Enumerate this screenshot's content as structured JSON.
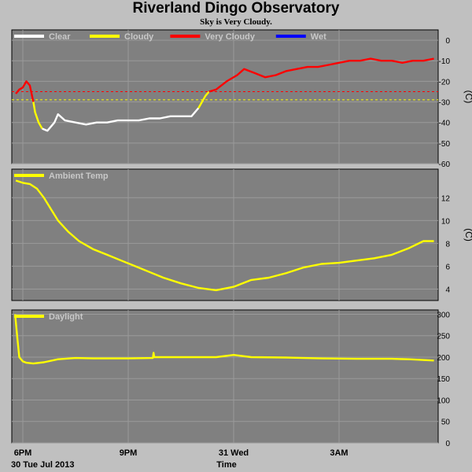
{
  "title": "Riverland Dingo Observatory",
  "subtitle": "Sky is Very Cloudy.",
  "x_axis": {
    "label": "Time",
    "ticks": [
      {
        "t": 0,
        "label": "6PM"
      },
      {
        "t": 3,
        "label": "9PM"
      },
      {
        "t": 6,
        "label": "31 Wed"
      },
      {
        "t": 9,
        "label": "3AM"
      }
    ],
    "date_label": "30 Tue Jul 2013"
  },
  "chart_data": [
    {
      "type": "line",
      "name": "sky",
      "ylabel": "(C)",
      "ylim": [
        -60,
        5
      ],
      "yticks": [
        0,
        -10,
        -20,
        -30,
        -40,
        -50,
        -60
      ],
      "thresholds": [
        {
          "value": -25,
          "color": "#ff0000"
        },
        {
          "value": -29,
          "color": "#ffff00"
        }
      ],
      "legend": [
        {
          "name": "Clear",
          "color": "#ffffff"
        },
        {
          "name": "Cloudy",
          "color": "#ffff00"
        },
        {
          "name": "Very Cloudy",
          "color": "#ff0000"
        },
        {
          "name": "Wet",
          "color": "#0000ff"
        }
      ],
      "series": [
        {
          "color": "#ff0000",
          "x": [
            -0.2,
            -0.1,
            0.0,
            0.1,
            0.2,
            0.3
          ],
          "y": [
            -26,
            -24,
            -23,
            -20,
            -22,
            -30
          ]
        },
        {
          "color": "#ffff00",
          "x": [
            0.3,
            0.35,
            0.45,
            0.55
          ],
          "y": [
            -30,
            -35,
            -40,
            -43
          ]
        },
        {
          "color": "#ffffff",
          "x": [
            0.55,
            0.7,
            0.9,
            1.0,
            1.2,
            1.5,
            1.8,
            2.1,
            2.4,
            2.7,
            3.0,
            3.3,
            3.6,
            3.9,
            4.2,
            4.5,
            4.8,
            5.0
          ],
          "y": [
            -43,
            -44,
            -40,
            -36,
            -39,
            -40,
            -41,
            -40,
            -40,
            -39,
            -39,
            -39,
            -38,
            -38,
            -37,
            -37,
            -37,
            -33
          ]
        },
        {
          "color": "#ffff00",
          "x": [
            5.0,
            5.1,
            5.2,
            5.3
          ],
          "y": [
            -33,
            -30,
            -27,
            -25
          ]
        },
        {
          "color": "#ff0000",
          "x": [
            5.3,
            5.5,
            5.8,
            6.1,
            6.3,
            6.6,
            6.9,
            7.2,
            7.5,
            7.8,
            8.1,
            8.4,
            8.7,
            9.0,
            9.3,
            9.6,
            9.9,
            10.2,
            10.5,
            10.8,
            11.1,
            11.4,
            11.7
          ],
          "y": [
            -25,
            -24,
            -20,
            -17,
            -14,
            -16,
            -18,
            -17,
            -15,
            -14,
            -13,
            -13,
            -12,
            -11,
            -10,
            -10,
            -9,
            -10,
            -10,
            -11,
            -10,
            -10,
            -9
          ]
        }
      ]
    },
    {
      "type": "line",
      "name": "ambient",
      "ylabel": "(C)",
      "ylim": [
        3,
        14.5
      ],
      "yticks": [
        4,
        6,
        8,
        10,
        12
      ],
      "legend": [
        {
          "name": "Ambient Temp",
          "color": "#ffff00"
        }
      ],
      "series": [
        {
          "color": "#ffff00",
          "x": [
            -0.2,
            0.0,
            0.2,
            0.4,
            0.6,
            0.8,
            1.0,
            1.3,
            1.6,
            2.0,
            2.4,
            2.8,
            3.2,
            3.6,
            4.0,
            4.5,
            5.0,
            5.5,
            6.0,
            6.5,
            7.0,
            7.5,
            8.0,
            8.5,
            9.0,
            9.5,
            10.0,
            10.5,
            11.0,
            11.4,
            11.7
          ],
          "y": [
            13.5,
            13.3,
            13.2,
            12.8,
            12.0,
            11.0,
            10.0,
            9.0,
            8.2,
            7.5,
            7.0,
            6.5,
            6.0,
            5.5,
            5.0,
            4.5,
            4.1,
            3.9,
            4.2,
            4.8,
            5.0,
            5.4,
            5.9,
            6.2,
            6.3,
            6.5,
            6.7,
            7.0,
            7.6,
            8.2,
            8.2
          ]
        }
      ]
    },
    {
      "type": "line",
      "name": "daylight",
      "ylabel": "",
      "ylim": [
        0,
        310
      ],
      "yticks": [
        0,
        50,
        100,
        150,
        200,
        250,
        300
      ],
      "legend": [
        {
          "name": "Daylight",
          "color": "#ffff00"
        }
      ],
      "series": [
        {
          "color": "#ffff00",
          "x": [
            -0.22,
            -0.15,
            -0.1,
            0.0,
            0.1,
            0.3,
            0.6,
            1.0,
            1.5,
            2.0,
            3.0,
            3.7,
            3.72,
            3.74,
            4.5,
            5.5,
            6.0,
            6.5,
            7.5,
            8.5,
            9.5,
            10.5,
            11.0,
            11.7
          ],
          "y": [
            300,
            240,
            200,
            190,
            187,
            185,
            188,
            195,
            198,
            197,
            197,
            198,
            210,
            200,
            200,
            200,
            205,
            200,
            199,
            197,
            196,
            196,
            195,
            192
          ]
        }
      ]
    }
  ]
}
